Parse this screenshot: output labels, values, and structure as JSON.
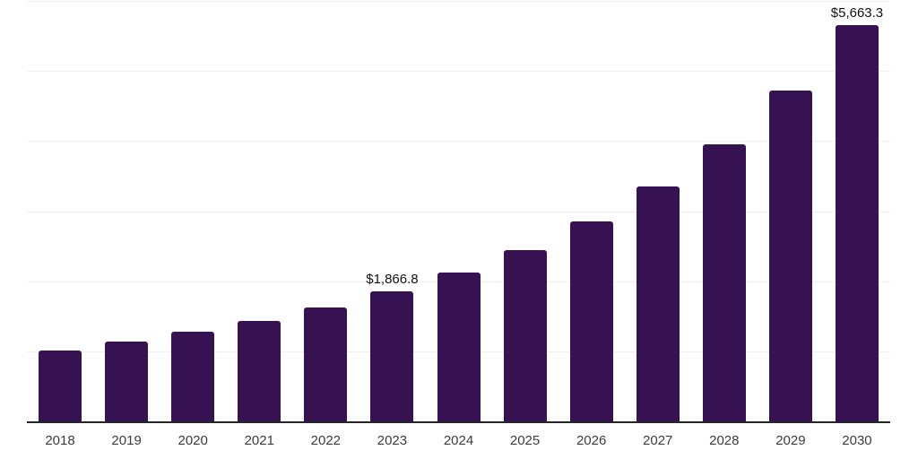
{
  "chart_data": {
    "type": "bar",
    "title": "",
    "xlabel": "",
    "ylabel": "",
    "categories": [
      "2018",
      "2019",
      "2020",
      "2021",
      "2022",
      "2023",
      "2024",
      "2025",
      "2026",
      "2027",
      "2028",
      "2029",
      "2030"
    ],
    "values": [
      1020,
      1150,
      1290,
      1450,
      1640,
      1866.8,
      2140,
      2460,
      2860,
      3360,
      3970,
      4740,
      5663.3
    ],
    "data_labels": [
      "",
      "",
      "",
      "",
      "",
      "$1,866.8",
      "",
      "",
      "",
      "",
      "",
      "",
      "$5,663.3"
    ],
    "ylim": [
      0,
      6000
    ],
    "grid_values": [
      1000,
      2000,
      3000,
      4000,
      5000,
      6000
    ],
    "grid": "horizontal-only",
    "legend_position": "none",
    "colors": {
      "bar": "#371253",
      "gridline": "#f0f0f0",
      "axis_line": "#262626",
      "tick_label": "#3c3c3c",
      "data_label": "#121212",
      "background": "#ffffff"
    }
  }
}
